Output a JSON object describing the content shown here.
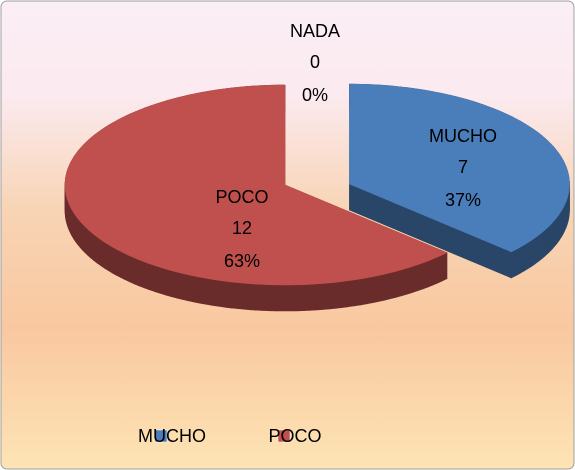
{
  "chart_data": {
    "type": "pie3d",
    "categories": [
      "MUCHO",
      "POCO",
      "NADA"
    ],
    "values": [
      7,
      12,
      0
    ],
    "percent_labels": [
      "37%",
      "63%",
      "0%"
    ],
    "colors": [
      "#4a7ebb",
      "#c0504d",
      "#9bbb59"
    ],
    "legend": "bottom"
  }
}
